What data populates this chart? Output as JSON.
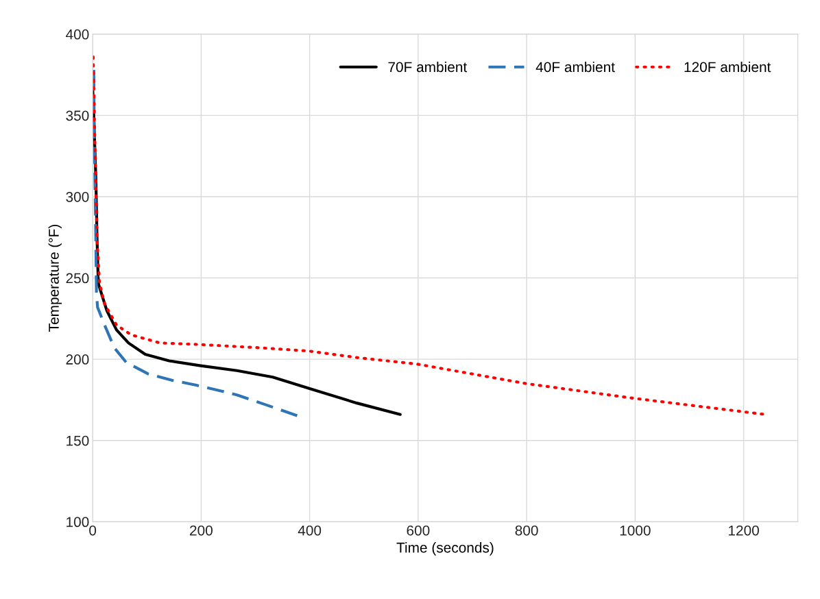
{
  "chart_data": {
    "type": "line",
    "xlabel": "Time (seconds)",
    "ylabel": "Temperature (°F)",
    "xlim": [
      0,
      1300
    ],
    "xticks": [
      0,
      200,
      400,
      600,
      800,
      1000,
      1200
    ],
    "ylim": [
      100,
      400
    ],
    "yticks": [
      100,
      150,
      200,
      250,
      300,
      350,
      400
    ],
    "grid": true,
    "legend": "top right",
    "series": [
      {
        "name": "70F ambient",
        "color": "#000000",
        "line_style": "solid",
        "x": [
          0,
          2,
          6,
          8,
          10,
          11,
          26,
          44,
          66,
          97,
          141,
          199,
          266,
          332,
          399,
          487,
          567
        ],
        "values": [
          367,
          350,
          310,
          275,
          251,
          246,
          230,
          218,
          210,
          203,
          199,
          196,
          193,
          189,
          182,
          173,
          166
        ]
      },
      {
        "name": "40F ambient",
        "color": "#2e75b6",
        "line_style": "dashed",
        "x": [
          2,
          3,
          5.5,
          7,
          9,
          22,
          40,
          62,
          102,
          147,
          191,
          230,
          266,
          310,
          345,
          379
        ],
        "values": [
          378,
          338,
          282,
          241,
          232,
          221,
          207,
          198,
          191,
          187,
          184,
          181,
          178,
          173,
          169,
          165
        ]
      },
      {
        "name": "120F ambient",
        "color": "#ff0000",
        "line_style": "dotted",
        "x": [
          1,
          3,
          5.5,
          8,
          12.6,
          22,
          44,
          71,
          124,
          199,
          310,
          399,
          487,
          598,
          799,
          996,
          1240
        ],
        "values": [
          386,
          352,
          310,
          275,
          247,
          234,
          221,
          215,
          210,
          209,
          207,
          205,
          201,
          197,
          185,
          176,
          166
        ]
      }
    ]
  }
}
